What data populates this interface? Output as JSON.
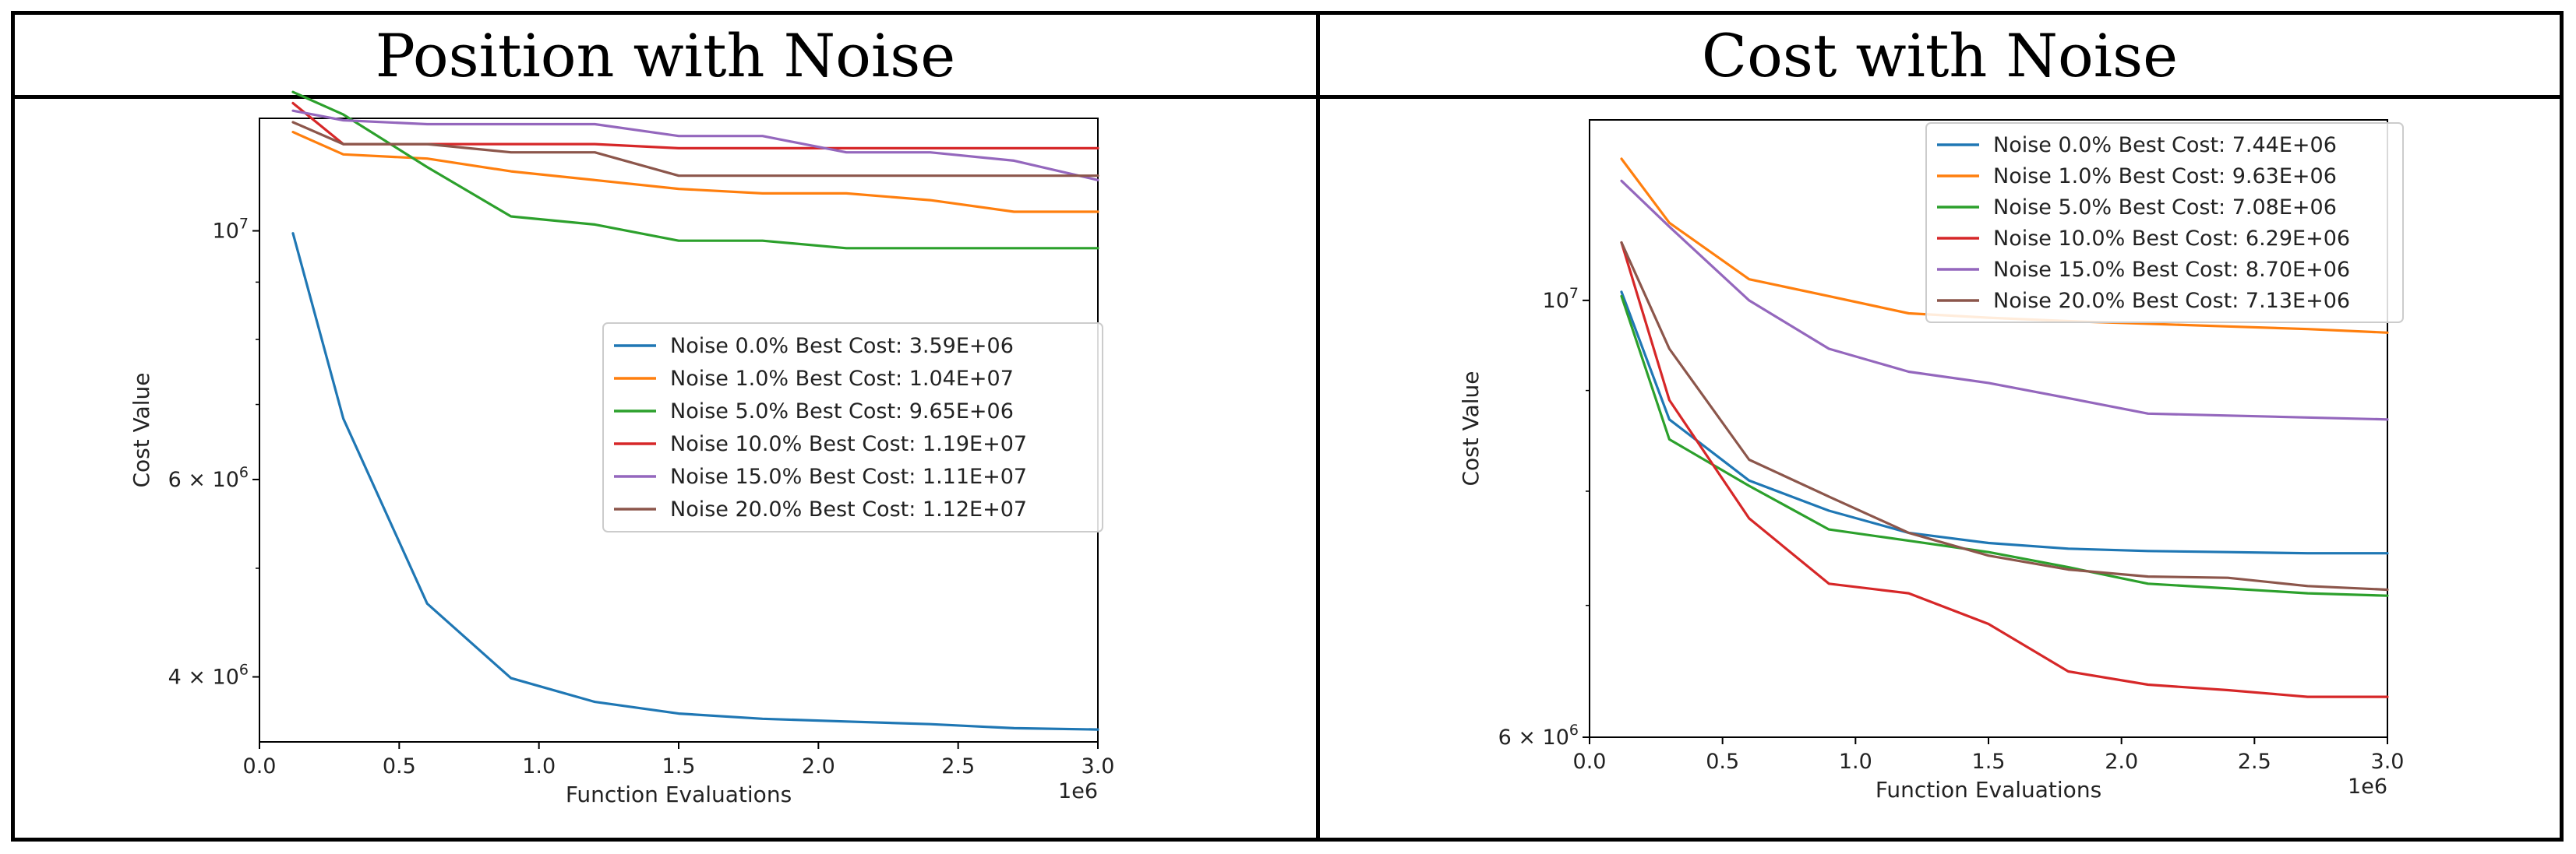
{
  "panels": {
    "left_title": "Position with Noise",
    "right_title": "Cost with Noise"
  },
  "chart_data": [
    {
      "type": "line",
      "title": "Position with Noise",
      "xlabel": "Function Evaluations",
      "ylabel": "Cost Value",
      "x_scale_label": "1e6",
      "xlim": [
        0,
        3.0
      ],
      "ylim": [
        3500000,
        12600000
      ],
      "yscale": "log",
      "x_ticks": [
        0.0,
        0.5,
        1.0,
        1.5,
        2.0,
        2.5,
        3.0
      ],
      "x_tick_labels": [
        "0.0",
        "0.5",
        "1.0",
        "1.5",
        "2.0",
        "2.5",
        "3.0"
      ],
      "y_ticks": [
        10000000,
        6000000,
        4000000
      ],
      "y_tick_labels": [
        {
          "base": "10",
          "exp": "7"
        },
        {
          "base": "6 × 10",
          "exp": "6"
        },
        {
          "base": "4 × 10",
          "exp": "6"
        }
      ],
      "y_minor_ticks": [
        5000000,
        7000000,
        8000000,
        9000000
      ],
      "legend_position": "center-right",
      "series": [
        {
          "name": "Noise  0.0% Best Cost: 3.59E+06",
          "color": "#1f77b4",
          "x": [
            0.12,
            0.3,
            0.6,
            0.9,
            1.2,
            1.5,
            1.8,
            2.1,
            2.4,
            2.7,
            3.0
          ],
          "y": [
            9950000,
            6800000,
            4650000,
            3990000,
            3800000,
            3710000,
            3670000,
            3650000,
            3630000,
            3600000,
            3590000
          ]
        },
        {
          "name": "Noise  1.0% Best Cost: 1.04E+07",
          "color": "#ff7f0e",
          "x": [
            0.12,
            0.3,
            0.6,
            0.9,
            1.2,
            1.5,
            1.8,
            2.1,
            2.4,
            2.7,
            3.0
          ],
          "y": [
            12250000,
            11700000,
            11600000,
            11300000,
            11100000,
            10900000,
            10800000,
            10800000,
            10650000,
            10400000,
            10400000
          ]
        },
        {
          "name": "Noise  5.0% Best Cost: 9.65E+06",
          "color": "#2ca02c",
          "x": [
            0.12,
            0.3,
            0.6,
            0.9,
            1.2,
            1.5,
            1.8,
            2.1,
            2.4,
            2.7,
            3.0
          ],
          "y": [
            13300000,
            12700000,
            11400000,
            10300000,
            10130000,
            9800000,
            9800000,
            9650000,
            9650000,
            9650000,
            9650000
          ]
        },
        {
          "name": "Noise  10.0% Best Cost: 1.19E+07",
          "color": "#d62728",
          "x": [
            0.12,
            0.3,
            0.6,
            0.9,
            1.2,
            1.5,
            1.8,
            2.1,
            2.4,
            2.7,
            3.0
          ],
          "y": [
            13000000,
            11950000,
            11950000,
            11950000,
            11950000,
            11850000,
            11850000,
            11850000,
            11850000,
            11850000,
            11850000
          ]
        },
        {
          "name": "Noise  15.0% Best Cost: 1.11E+07",
          "color": "#9467bd",
          "x": [
            0.12,
            0.3,
            0.6,
            0.9,
            1.2,
            1.5,
            1.8,
            2.1,
            2.4,
            2.7,
            3.0
          ],
          "y": [
            12800000,
            12550000,
            12450000,
            12450000,
            12450000,
            12150000,
            12150000,
            11750000,
            11750000,
            11550000,
            11100000
          ]
        },
        {
          "name": "Noise  20.0% Best Cost: 1.12E+07",
          "color": "#8c564b",
          "x": [
            0.12,
            0.3,
            0.6,
            0.9,
            1.2,
            1.5,
            1.8,
            2.1,
            2.4,
            2.7,
            3.0
          ],
          "y": [
            12500000,
            11950000,
            11950000,
            11750000,
            11750000,
            11200000,
            11200000,
            11200000,
            11200000,
            11200000,
            11200000
          ]
        }
      ]
    },
    {
      "type": "line",
      "title": "Cost with Noise",
      "xlabel": "Function Evaluations",
      "ylabel": "Cost Value",
      "x_scale_label": "1e6",
      "xlim": [
        0,
        3.0
      ],
      "ylim": [
        6000000,
        12350000
      ],
      "yscale": "log",
      "x_ticks": [
        0.0,
        0.5,
        1.0,
        1.5,
        2.0,
        2.5,
        3.0
      ],
      "x_tick_labels": [
        "0.0",
        "0.5",
        "1.0",
        "1.5",
        "2.0",
        "2.5",
        "3.0"
      ],
      "y_ticks": [
        10000000,
        6000000
      ],
      "y_tick_labels": [
        {
          "base": "10",
          "exp": "7"
        },
        {
          "base": "6 × 10",
          "exp": "6"
        }
      ],
      "y_minor_ticks": [
        7000000,
        8000000,
        9000000
      ],
      "legend_position": "top-right",
      "series": [
        {
          "name": "Noise  0.0% Best Cost: 7.44E+06",
          "color": "#1f77b4",
          "x": [
            0.12,
            0.3,
            0.6,
            0.9,
            1.2,
            1.5,
            1.8,
            2.1,
            2.4,
            2.7,
            3.0
          ],
          "y": [
            10100000,
            8700000,
            8100000,
            7820000,
            7620000,
            7530000,
            7480000,
            7460000,
            7450000,
            7440000,
            7440000
          ]
        },
        {
          "name": "Noise  1.0% Best Cost: 9.63E+06",
          "color": "#ff7f0e",
          "x": [
            0.12,
            0.3,
            0.6,
            0.9,
            1.2,
            1.5,
            1.8,
            2.1,
            2.4,
            2.7,
            3.0
          ],
          "y": [
            11800000,
            10950000,
            10250000,
            10050000,
            9850000,
            9800000,
            9760000,
            9730000,
            9700000,
            9670000,
            9630000
          ]
        },
        {
          "name": "Noise  5.0% Best Cost: 7.08E+06",
          "color": "#2ca02c",
          "x": [
            0.12,
            0.3,
            0.6,
            0.9,
            1.2,
            1.5,
            1.8,
            2.1,
            2.4,
            2.7,
            3.0
          ],
          "y": [
            10050000,
            8500000,
            8050000,
            7650000,
            7550000,
            7450000,
            7320000,
            7180000,
            7140000,
            7100000,
            7080000
          ]
        },
        {
          "name": "Noise  10.0% Best Cost: 6.29E+06",
          "color": "#d62728",
          "x": [
            0.12,
            0.3,
            0.6,
            0.9,
            1.2,
            1.5,
            1.8,
            2.1,
            2.4,
            2.7,
            3.0
          ],
          "y": [
            10700000,
            8900000,
            7750000,
            7180000,
            7100000,
            6850000,
            6480000,
            6380000,
            6340000,
            6290000,
            6290000
          ]
        },
        {
          "name": "Noise  15.0% Best Cost: 8.70E+06",
          "color": "#9467bd",
          "x": [
            0.12,
            0.3,
            0.6,
            0.9,
            1.2,
            1.5,
            1.8,
            2.1,
            2.4,
            2.7,
            3.0
          ],
          "y": [
            11500000,
            10900000,
            10000000,
            9450000,
            9200000,
            9080000,
            8920000,
            8760000,
            8740000,
            8720000,
            8700000
          ]
        },
        {
          "name": "Noise  20.0% Best Cost: 7.13E+06",
          "color": "#8c564b",
          "x": [
            0.12,
            0.3,
            0.6,
            0.9,
            1.2,
            1.5,
            1.8,
            2.1,
            2.4,
            2.7,
            3.0
          ],
          "y": [
            10700000,
            9450000,
            8300000,
            7950000,
            7620000,
            7420000,
            7300000,
            7240000,
            7230000,
            7160000,
            7130000
          ]
        }
      ]
    }
  ]
}
